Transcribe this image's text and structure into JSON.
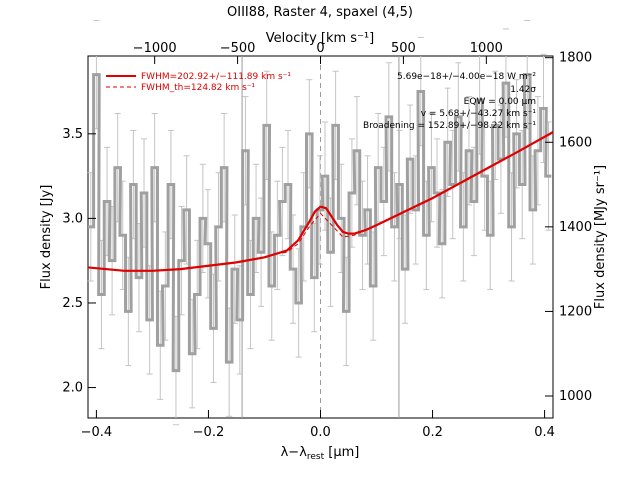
{
  "chart_data": {
    "type": "line",
    "title": "OIII88, Raster 4, spaxel (4,5)",
    "xlabel": "λ−λ",
    "xlabel_sub": "rest",
    "xlabel_unit": " [μm]",
    "ylabel": "Flux density [Jy]",
    "ylabel_right": "Flux density [MJy sr⁻¹]",
    "xlabel_top": "Velocity [km s⁻¹]",
    "xlim": [
      -0.415,
      0.415
    ],
    "ylim": [
      1.82,
      3.96
    ],
    "x_ticks": [
      -0.4,
      -0.2,
      0.0,
      0.2,
      0.4
    ],
    "x_tick_labels": [
      "−0.4",
      "−0.2",
      "0.0",
      "0.2",
      "0.4"
    ],
    "y_ticks": [
      2.0,
      2.5,
      3.0,
      3.5
    ],
    "y_tick_labels": [
      "2.0",
      "2.5",
      "3.0",
      "3.5"
    ],
    "top_ticks": [
      -1000,
      -500,
      0,
      500,
      1000
    ],
    "top_tick_labels": [
      "−1000",
      "−500",
      "0",
      "500",
      "1000"
    ],
    "top_tick_x": [
      -0.296,
      -0.148,
      0.0,
      0.148,
      0.296
    ],
    "right_ticks": [
      1000,
      1200,
      1400,
      1600,
      1800
    ],
    "right_tick_labels": [
      "1000",
      "1200",
      "1400",
      "1600",
      "1800"
    ],
    "right_tick_y": [
      1.95,
      2.45,
      2.95,
      3.45,
      3.95
    ],
    "vlines_solid": [
      -0.14,
      0.14
    ],
    "vline_dashed": 0.0,
    "legend": [
      {
        "label": "FWHM=202.92+/−111.89 km s⁻¹",
        "style": "solid",
        "color": "#e00000"
      },
      {
        "label": "FWHM_th=124.82 km s⁻¹",
        "style": "dashed",
        "color": "#e00000"
      }
    ],
    "annotations": [
      "5.69e−18+/−4.00e−18 W m⁻²",
      "1.42σ",
      "EQW = 0.00 μm",
      "v = 5.68+/−43.27 km s⁻¹",
      "Broadening = 152.89+/−98.22 km s⁻¹"
    ],
    "spectrum": {
      "name": "",
      "x": [
        -0.41,
        -0.4,
        -0.391,
        -0.381,
        -0.372,
        -0.362,
        -0.353,
        -0.343,
        -0.334,
        -0.324,
        -0.315,
        -0.305,
        -0.296,
        -0.286,
        -0.277,
        -0.267,
        -0.258,
        -0.248,
        -0.239,
        -0.229,
        -0.22,
        -0.21,
        -0.201,
        -0.191,
        -0.182,
        -0.172,
        -0.163,
        -0.153,
        -0.144,
        -0.134,
        -0.125,
        -0.115,
        -0.106,
        -0.096,
        -0.087,
        -0.077,
        -0.068,
        -0.058,
        -0.049,
        -0.039,
        -0.03,
        -0.02,
        -0.011,
        -0.001,
        0.008,
        0.018,
        0.027,
        0.037,
        0.046,
        0.056,
        0.065,
        0.075,
        0.084,
        0.094,
        0.103,
        0.113,
        0.122,
        0.132,
        0.141,
        0.151,
        0.16,
        0.17,
        0.179,
        0.189,
        0.198,
        0.208,
        0.217,
        0.227,
        0.236,
        0.246,
        0.255,
        0.265,
        0.274,
        0.284,
        0.293,
        0.303,
        0.312,
        0.322,
        0.331,
        0.341,
        0.35,
        0.36,
        0.369,
        0.379,
        0.388,
        0.398,
        0.407
      ],
      "y": [
        2.95,
        3.85,
        2.55,
        3.1,
        2.75,
        3.3,
        2.9,
        2.45,
        3.2,
        2.65,
        3.15,
        2.4,
        3.3,
        2.25,
        2.6,
        3.2,
        2.1,
        2.75,
        3.05,
        2.2,
        2.55,
        3.0,
        2.85,
        2.35,
        2.95,
        3.3,
        2.15,
        2.7,
        2.4,
        3.4,
        2.55,
        3.0,
        2.8,
        3.55,
        2.6,
        2.9,
        3.1,
        3.2,
        2.7,
        2.5,
        2.95,
        3.5,
        2.65,
        3.05,
        3.25,
        2.8,
        3.55,
        3.0,
        2.45,
        3.15,
        3.4,
        2.9,
        3.05,
        2.6,
        3.3,
        3.1,
        3.6,
        2.95,
        3.2,
        2.7,
        3.35,
        3.05,
        3.75,
        2.9,
        3.3,
        3.15,
        2.85,
        3.45,
        3.2,
        3.6,
        2.95,
        3.4,
        3.1,
        3.7,
        3.25,
        2.9,
        3.55,
        3.35,
        3.8,
        2.95,
        3.5,
        3.2,
        3.85,
        3.05,
        3.4,
        3.65,
        3.25
      ],
      "err": [
        0.32,
        0.32,
        0.32,
        0.32,
        0.32,
        0.32,
        0.32,
        0.32,
        0.32,
        0.32,
        0.32,
        0.32,
        0.32,
        0.32,
        0.32,
        0.32,
        0.32,
        0.32,
        0.32,
        0.32,
        0.32,
        0.32,
        0.32,
        0.32,
        0.32,
        0.32,
        0.32,
        0.32,
        0.32,
        0.32,
        0.32,
        0.32,
        0.32,
        0.32,
        0.32,
        0.32,
        0.32,
        0.32,
        0.32,
        0.32,
        0.32,
        0.32,
        0.32,
        0.32,
        0.32,
        0.32,
        0.32,
        0.32,
        0.32,
        0.32,
        0.32,
        0.32,
        0.32,
        0.32,
        0.32,
        0.32,
        0.32,
        0.32,
        0.32,
        0.32,
        0.32,
        0.32,
        0.32,
        0.32,
        0.32,
        0.32,
        0.32,
        0.32,
        0.32,
        0.32,
        0.32,
        0.32,
        0.32,
        0.32,
        0.32,
        0.32,
        0.32,
        0.32,
        0.32,
        0.32,
        0.32,
        0.32,
        0.32,
        0.32,
        0.32,
        0.32,
        0.32
      ],
      "color": "#a0a0a0"
    },
    "fit_total": {
      "name": "",
      "x": [
        -0.415,
        -0.35,
        -0.3,
        -0.25,
        -0.2,
        -0.15,
        -0.1,
        -0.08,
        -0.06,
        -0.04,
        -0.02,
        -0.01,
        0.0,
        0.01,
        0.02,
        0.03,
        0.04,
        0.05,
        0.06,
        0.08,
        0.1,
        0.15,
        0.2,
        0.25,
        0.3,
        0.35,
        0.415
      ],
      "y": [
        2.71,
        2.69,
        2.69,
        2.7,
        2.72,
        2.74,
        2.77,
        2.79,
        2.81,
        2.87,
        2.98,
        3.04,
        3.07,
        3.06,
        3.01,
        2.96,
        2.92,
        2.91,
        2.91,
        2.93,
        2.96,
        3.04,
        3.12,
        3.21,
        3.3,
        3.39,
        3.51
      ],
      "color": "#e00000"
    },
    "fit_thermal": {
      "name": "",
      "x": [
        -0.08,
        -0.06,
        -0.04,
        -0.02,
        0.0,
        0.02,
        0.04,
        0.06,
        0.08
      ],
      "y": [
        2.79,
        2.8,
        2.85,
        2.95,
        3.03,
        2.96,
        2.89,
        2.9,
        2.93
      ],
      "color": "#e00000"
    },
    "grid": false
  }
}
